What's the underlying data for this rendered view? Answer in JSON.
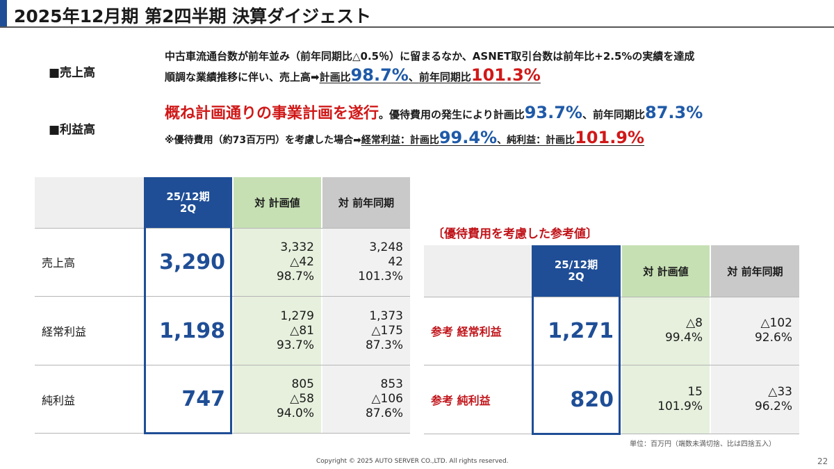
{
  "title": "2025年12月期 第2四半期 決算ダイジェスト",
  "summary": {
    "sales_label": "■売上高",
    "sales_line1": "中古車流通台数が前年並み（前年同期比△0.5％）に留まるなか、ASNET取引台数は前年比+2.5%の実績を達成",
    "sales_line2_prefix": "順調な業績推移に伴い、売上高➡",
    "sales_plan_label": "計画比",
    "sales_plan_value": "98.7%",
    "sales_sep": "、",
    "sales_yoy_label": "前年同期比",
    "sales_yoy_value": "101.3%",
    "profit_label": "■利益高",
    "profit_headline": "概ね計画通りの事業計画を遂行",
    "profit_headline_tail": "。優待費用の発生により計画比",
    "profit_plan_value": "93.7%",
    "profit_mid": "、前年同期比",
    "profit_yoy_value": "87.3%",
    "note_prefix": "※優待費用（約73百万円）を考慮した場合➡",
    "note_ordinary_label": "経常利益：計画比",
    "note_ordinary_value": "99.4%",
    "note_sep": "、",
    "note_net_label": "純利益：計画比",
    "note_net_value": "101.9%"
  },
  "table_main": {
    "header_period_line1": "25/12期",
    "header_period_line2": "2Q",
    "header_plan": "対 計画値",
    "header_yoy": "対 前年同期",
    "rows": [
      {
        "label": "売上高",
        "value": "3,290",
        "plan": [
          "3,332",
          "△42",
          "98.7%"
        ],
        "yoy": [
          "3,248",
          "42",
          "101.3%"
        ]
      },
      {
        "label": "経常利益",
        "value": "1,198",
        "plan": [
          "1,279",
          "△81",
          "93.7%"
        ],
        "yoy": [
          "1,373",
          "△175",
          "87.3%"
        ]
      },
      {
        "label": "純利益",
        "value": "747",
        "plan": [
          "805",
          "△58",
          "94.0%"
        ],
        "yoy": [
          "853",
          "△106",
          "87.6%"
        ]
      }
    ]
  },
  "table_ref": {
    "caption": "〔優待費用を考慮した参考値〕",
    "header_period_line1": "25/12期",
    "header_period_line2": "2Q",
    "header_plan": "対 計画値",
    "header_yoy": "対 前年同期",
    "rows": [
      {
        "label": "参考 経常利益",
        "value": "1,271",
        "plan": [
          "△8",
          "99.4%"
        ],
        "yoy": [
          "△102",
          "92.6%"
        ]
      },
      {
        "label": "参考 純利益",
        "value": "820",
        "plan": [
          "15",
          "101.9%"
        ],
        "yoy": [
          "△33",
          "96.2%"
        ]
      }
    ]
  },
  "unit_note": "単位：百万円（端数未満切捨、比は四捨五入）",
  "footer": "Copyright © 2025 AUTO SERVER CO.,LTD.  All rights reserved.",
  "page_number": "22",
  "colors": {
    "accent_blue": "#1f4e96",
    "highlight_red": "#d01818",
    "plan_green": "#c6e0b4",
    "yoy_gray": "#c9c9c9"
  }
}
